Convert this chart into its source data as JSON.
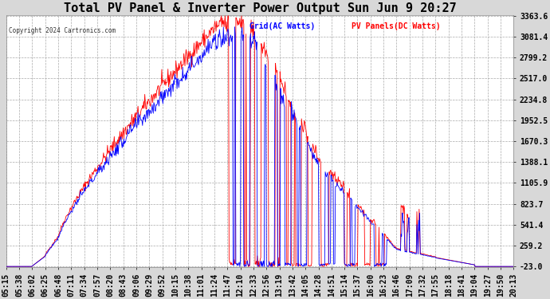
{
  "title": "Total PV Panel & Inverter Power Output Sun Jun 9 20:27",
  "copyright": "Copyright 2024 Cartronics.com",
  "legend_grid": "Grid(AC Watts)",
  "legend_pv": "PV Panels(DC Watts)",
  "legend_grid_color": "blue",
  "legend_pv_color": "red",
  "background_color": "#d8d8d8",
  "plot_bg_color": "#ffffff",
  "grid_color": "#aaaaaa",
  "yticks": [
    3363.6,
    3081.4,
    2799.2,
    2517.0,
    2234.8,
    1952.5,
    1670.3,
    1388.1,
    1105.9,
    823.7,
    541.4,
    259.2,
    -23.0
  ],
  "ymin": -23.0,
  "ymax": 3363.6,
  "title_fontsize": 11,
  "tick_fontsize": 7,
  "x_tick_labels": [
    "05:15",
    "05:38",
    "06:02",
    "06:25",
    "06:48",
    "07:11",
    "07:34",
    "07:57",
    "08:20",
    "08:43",
    "09:06",
    "09:29",
    "09:52",
    "10:15",
    "10:38",
    "11:01",
    "11:24",
    "11:47",
    "12:10",
    "12:33",
    "12:56",
    "13:19",
    "13:42",
    "14:05",
    "14:28",
    "14:51",
    "15:14",
    "15:37",
    "16:00",
    "16:23",
    "16:46",
    "17:09",
    "17:32",
    "17:55",
    "18:18",
    "18:41",
    "19:04",
    "19:27",
    "19:50",
    "20:13"
  ]
}
